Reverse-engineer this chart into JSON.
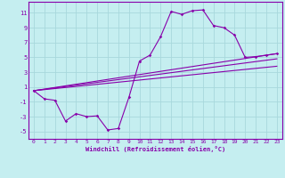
{
  "background_color": "#c5eef0",
  "grid_color": "#a8d8dc",
  "line_color": "#8800aa",
  "xlim": [
    -0.5,
    23.5
  ],
  "ylim": [
    -6,
    12.5
  ],
  "xticks": [
    0,
    1,
    2,
    3,
    4,
    5,
    6,
    7,
    8,
    9,
    10,
    11,
    12,
    13,
    14,
    15,
    16,
    17,
    18,
    19,
    20,
    21,
    22,
    23
  ],
  "yticks": [
    -5,
    -3,
    -1,
    1,
    3,
    5,
    7,
    9,
    11
  ],
  "xlabel": "Windchill (Refroidissement éolien,°C)",
  "line1_x": [
    0,
    1,
    2,
    3,
    4,
    5,
    6,
    7,
    8,
    9,
    10,
    11,
    12,
    13,
    14,
    15,
    16,
    17,
    18,
    19,
    20,
    21,
    22,
    23
  ],
  "line1_y": [
    0.5,
    -0.6,
    -0.8,
    -3.6,
    -2.6,
    -3.0,
    -2.9,
    -4.8,
    -4.6,
    -0.4,
    4.5,
    5.3,
    7.8,
    11.2,
    10.8,
    11.3,
    11.4,
    9.3,
    9.0,
    8.0,
    5.0,
    5.1,
    5.3,
    5.5
  ],
  "line2_x": [
    0,
    23
  ],
  "line2_y": [
    0.5,
    5.5
  ],
  "line3_x": [
    0,
    23
  ],
  "line3_y": [
    0.5,
    4.8
  ],
  "line4_x": [
    0,
    23
  ],
  "line4_y": [
    0.5,
    3.8
  ]
}
